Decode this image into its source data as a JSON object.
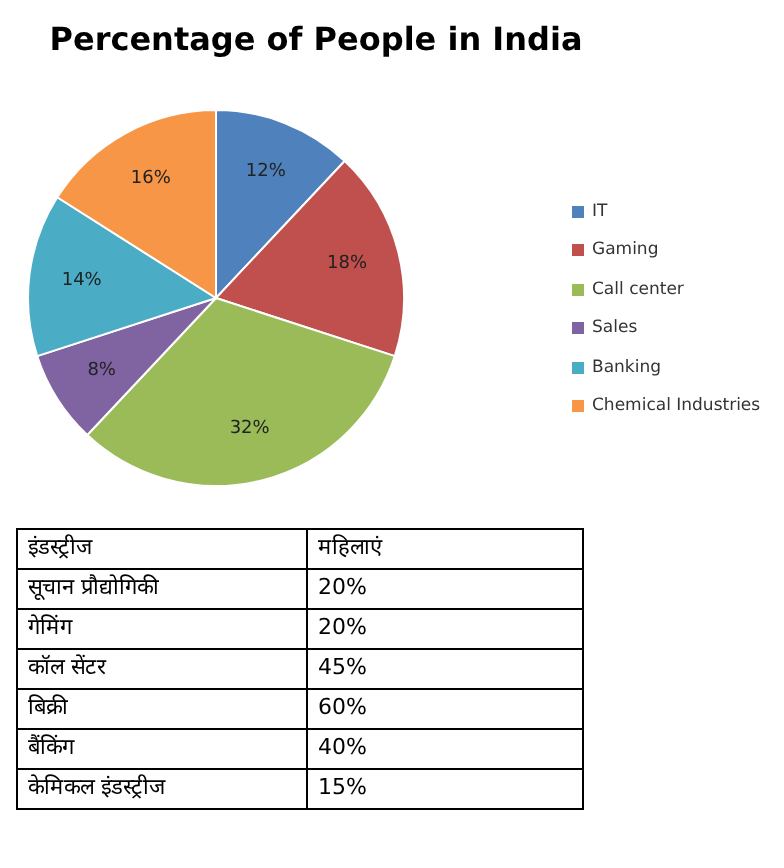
{
  "chart_data": [
    {
      "type": "pie",
      "title": "Percentage of People in India",
      "categories": [
        "IT",
        "Gaming",
        "Call center",
        "Sales",
        "Banking",
        "Chemical Industries"
      ],
      "values": [
        12,
        18,
        32,
        8,
        14,
        16
      ],
      "value_labels": [
        "12%",
        "18%",
        "32%",
        "8%",
        "14%",
        "16%"
      ],
      "colors": [
        "#4f81bd",
        "#c0504d",
        "#9bbb59",
        "#8064a2",
        "#4bacc6",
        "#f79646"
      ],
      "legend": "right"
    },
    {
      "type": "other",
      "xlabel": "इंडस्ट्रीज",
      "ylabel": "महिलाएं",
      "categories": [
        "सूचान प्रौद्योगिकी",
        "गेमिंग",
        "कॉल सेंटर",
        "बिक्री",
        "बैंकिंग",
        "केमिकल इंडस्ट्रीज"
      ],
      "values": [
        20,
        20,
        45,
        60,
        40,
        15
      ],
      "value_labels": [
        "20%",
        "20%",
        "45%",
        "60%",
        "40%",
        "15%"
      ]
    }
  ]
}
